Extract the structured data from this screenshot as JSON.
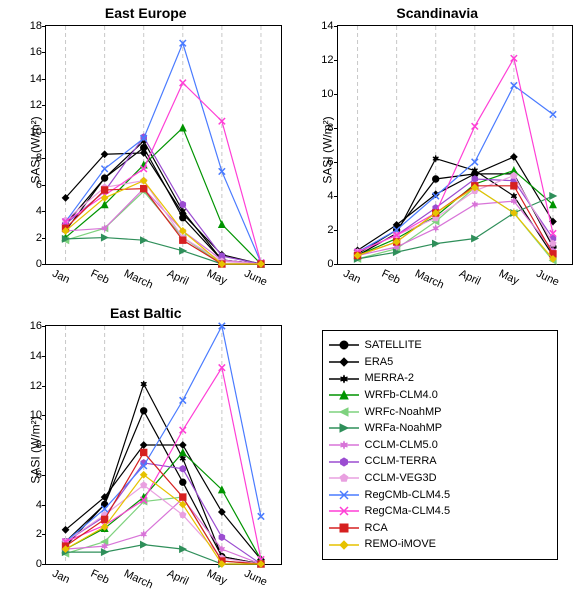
{
  "background_color": "#ffffff",
  "grid_color": "#c8c8c8",
  "title_fontsize": 14,
  "label_fontsize": 12,
  "tick_fontsize": 11,
  "xcategories": [
    "Jan",
    "Feb",
    "March",
    "April",
    "May",
    "June"
  ],
  "panels": [
    {
      "key": "east_europe",
      "title": "East Europe",
      "ylabel": "SASI (W/m²)",
      "ylim": [
        0,
        18
      ],
      "ytick_step": 2,
      "series_idx": [
        0,
        1,
        2,
        3,
        4,
        5,
        6,
        7,
        8,
        9,
        10,
        11,
        12
      ],
      "data": {
        "SATELLITE": [
          3.0,
          6.5,
          8.8,
          3.5,
          0.3,
          0.0
        ],
        "ERA5": [
          5.0,
          8.3,
          8.4,
          3.8,
          0.7,
          0.0
        ],
        "MERRA-2": [
          2.5,
          6.5,
          9.3,
          4.0,
          0.3,
          0.0
        ],
        "WRFb-CLM4.0": [
          2.0,
          4.5,
          7.5,
          10.3,
          3.0,
          0.0
        ],
        "WRFc-NoahMP": [
          1.8,
          2.7,
          5.5,
          2.0,
          0.0,
          0.0
        ],
        "WRFa-NoahMP": [
          1.9,
          2.0,
          1.8,
          1.0,
          0.0,
          0.0
        ],
        "CCLM-CLM5.0": [
          2.5,
          2.7,
          5.7,
          2.5,
          0.3,
          0.0
        ],
        "CCLM-TERRA": [
          3.0,
          5.5,
          9.6,
          4.5,
          0.6,
          0.0
        ],
        "CCLM-VEG3D": [
          3.3,
          5.8,
          6.3,
          2.0,
          0.2,
          0.0
        ],
        "RegCMb-CLM4.5": [
          3.2,
          7.2,
          9.5,
          16.7,
          7.0,
          0.1
        ],
        "RegCMa-CLM4.5": [
          3.2,
          5.2,
          7.2,
          13.7,
          10.8,
          0.1
        ],
        "RCA": [
          2.7,
          5.6,
          5.7,
          1.8,
          0.0,
          0.0
        ],
        "REMO-iMOVE": [
          2.5,
          5.0,
          6.3,
          2.5,
          0.0,
          0.0
        ]
      }
    },
    {
      "key": "scandinavia",
      "title": "Scandinavia",
      "ylabel": "SASI (W/m²)",
      "ylim": [
        0,
        14
      ],
      "ytick_step": 2,
      "series_idx": [
        0,
        1,
        2,
        3,
        4,
        5,
        6,
        7,
        8,
        9,
        10,
        11,
        12
      ],
      "data": {
        "SATELLITE": [
          0.6,
          2.0,
          5.0,
          5.3,
          5.3,
          1.0
        ],
        "ERA5": [
          0.8,
          2.3,
          4.1,
          5.3,
          6.3,
          2.5
        ],
        "MERRA-2": [
          0.5,
          1.8,
          6.2,
          5.5,
          4.0,
          0.5
        ],
        "WRFb-CLM4.0": [
          0.5,
          1.5,
          2.8,
          4.7,
          5.5,
          3.5
        ],
        "WRFc-NoahMP": [
          0.3,
          0.9,
          2.5,
          4.5,
          3.0,
          0.2
        ],
        "WRFa-NoahMP": [
          0.3,
          0.7,
          1.2,
          1.5,
          3.0,
          4.0
        ],
        "CCLM-CLM5.0": [
          0.5,
          1.0,
          2.1,
          3.5,
          3.7,
          0.8
        ],
        "CCLM-TERRA": [
          0.7,
          1.7,
          3.3,
          5.0,
          4.9,
          1.5
        ],
        "CCLM-VEG3D": [
          0.7,
          1.7,
          2.7,
          4.3,
          5.2,
          1.2
        ],
        "RegCMb-CLM4.5": [
          0.7,
          2.0,
          4.0,
          6.0,
          10.5,
          8.8
        ],
        "RegCMa-CLM4.5": [
          0.7,
          1.7,
          3.0,
          8.1,
          12.1,
          1.8
        ],
        "RCA": [
          0.5,
          1.3,
          3.0,
          4.6,
          4.6,
          0.6
        ],
        "REMO-iMOVE": [
          0.5,
          1.3,
          3.0,
          4.5,
          3.0,
          0.3
        ]
      }
    },
    {
      "key": "east_baltic",
      "title": "East Baltic",
      "ylabel": "SASI (W/m²)",
      "ylim": [
        0,
        16
      ],
      "ytick_step": 2,
      "series_idx": [
        0,
        1,
        2,
        3,
        4,
        5,
        6,
        7,
        8,
        9,
        10,
        11,
        12
      ],
      "data": {
        "SATELLITE": [
          1.5,
          4.0,
          10.3,
          5.5,
          0.5,
          0.0
        ],
        "ERA5": [
          2.3,
          4.5,
          8.0,
          8.0,
          3.5,
          0.3
        ],
        "MERRA-2": [
          1.2,
          4.0,
          12.1,
          7.1,
          0.5,
          0.0
        ],
        "WRFb-CLM4.0": [
          1.0,
          2.4,
          4.5,
          7.5,
          5.0,
          0.3
        ],
        "WRFc-NoahMP": [
          0.7,
          1.5,
          4.2,
          4.5,
          0.2,
          0.0
        ],
        "WRFa-NoahMP": [
          0.8,
          0.8,
          1.3,
          1.0,
          0.0,
          0.0
        ],
        "CCLM-CLM5.0": [
          1.0,
          1.2,
          2.0,
          4.4,
          1.0,
          0.0
        ],
        "CCLM-TERRA": [
          1.5,
          3.2,
          6.8,
          6.4,
          1.8,
          0.0
        ],
        "CCLM-VEG3D": [
          1.5,
          3.3,
          5.3,
          3.3,
          0.4,
          0.0
        ],
        "RegCMb-CLM4.5": [
          1.5,
          3.7,
          6.6,
          11.0,
          16.0,
          3.2
        ],
        "RegCMa-CLM4.5": [
          1.5,
          2.6,
          4.3,
          9.0,
          13.2,
          0.3
        ],
        "RCA": [
          1.2,
          3.0,
          7.5,
          4.5,
          0.2,
          0.0
        ],
        "REMO-iMOVE": [
          1.0,
          2.5,
          6.0,
          4.0,
          0.0,
          0.0
        ]
      }
    }
  ],
  "series": [
    {
      "name": "SATELLITE",
      "color": "#000000",
      "marker": "circle",
      "line": "solid"
    },
    {
      "name": "ERA5",
      "color": "#000000",
      "marker": "diamond",
      "line": "solid"
    },
    {
      "name": "MERRA-2",
      "color": "#000000",
      "marker": "star",
      "line": "solid"
    },
    {
      "name": "WRFb-CLM4.0",
      "color": "#009400",
      "marker": "triangle",
      "line": "solid"
    },
    {
      "name": "WRFc-NoahMP",
      "color": "#7ed27e",
      "marker": "ltriangle",
      "line": "solid"
    },
    {
      "name": "WRFa-NoahMP",
      "color": "#2f8f5a",
      "marker": "rtriangle",
      "line": "solid"
    },
    {
      "name": "CCLM-CLM5.0",
      "color": "#d874d8",
      "marker": "star",
      "line": "solid"
    },
    {
      "name": "CCLM-TERRA",
      "color": "#9b4dd1",
      "marker": "hexagon",
      "line": "solid"
    },
    {
      "name": "CCLM-VEG3D",
      "color": "#e9a0e0",
      "marker": "pentagon",
      "line": "solid"
    },
    {
      "name": "RegCMb-CLM4.5",
      "color": "#4a7bff",
      "marker": "x",
      "line": "solid"
    },
    {
      "name": "RegCMa-CLM4.5",
      "color": "#ff3fd6",
      "marker": "x",
      "line": "solid"
    },
    {
      "name": "RCA",
      "color": "#d62020",
      "marker": "square",
      "line": "solid"
    },
    {
      "name": "REMO-iMOVE",
      "color": "#e6c200",
      "marker": "diamond",
      "line": "solid"
    }
  ]
}
